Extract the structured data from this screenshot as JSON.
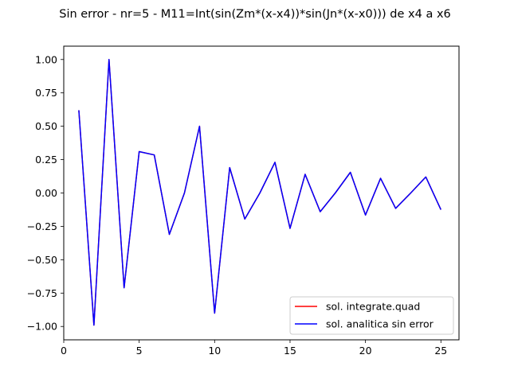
{
  "chart_data": {
    "type": "line",
    "title": "Sin error  - nr=5 - M11=Int(sin(Zm*(x-x4))*sin(Jn*(x-x0))) de x4 a x6",
    "xlabel": "",
    "ylabel": "",
    "xlim": [
      0,
      26.2
    ],
    "ylim": [
      -1.1,
      1.1
    ],
    "xticks": [
      0,
      5,
      10,
      15,
      20,
      25
    ],
    "yticks": [
      1.0,
      0.75,
      0.5,
      0.25,
      0.0,
      -0.25,
      -0.5,
      -0.75,
      -1.0
    ],
    "xtick_labels": [
      "0",
      "5",
      "10",
      "15",
      "20",
      "25"
    ],
    "ytick_labels": [
      "1.00",
      "0.75",
      "0.50",
      "0.25",
      "0.00",
      "−0.25",
      "−0.50",
      "−0.75",
      "−1.00"
    ],
    "grid": false,
    "legend_position": "lower-right",
    "x": [
      1,
      2,
      3,
      4,
      5,
      6,
      7,
      8,
      9,
      10,
      11,
      12,
      13,
      14,
      15,
      16,
      17,
      18,
      19,
      20,
      21,
      22,
      23,
      24,
      25
    ],
    "series": [
      {
        "name": "sol. integrate.quad",
        "color": "#ff0000",
        "values": [
          0.62,
          -0.99,
          1.0,
          -0.71,
          0.31,
          0.285,
          -0.31,
          0.0,
          0.5,
          -0.9,
          0.19,
          -0.195,
          0.0,
          0.23,
          -0.265,
          0.14,
          -0.14,
          0.0,
          0.155,
          -0.165,
          0.11,
          -0.115,
          0.0,
          0.12,
          -0.125
        ]
      },
      {
        "name": "sol. analitica sin error",
        "color": "#0000ff",
        "values": [
          0.62,
          -0.99,
          1.0,
          -0.71,
          0.31,
          0.285,
          -0.31,
          0.0,
          0.5,
          -0.9,
          0.19,
          -0.195,
          0.0,
          0.23,
          -0.265,
          0.14,
          -0.14,
          0.0,
          0.155,
          -0.165,
          0.11,
          -0.115,
          0.0,
          0.12,
          -0.125
        ]
      }
    ]
  }
}
